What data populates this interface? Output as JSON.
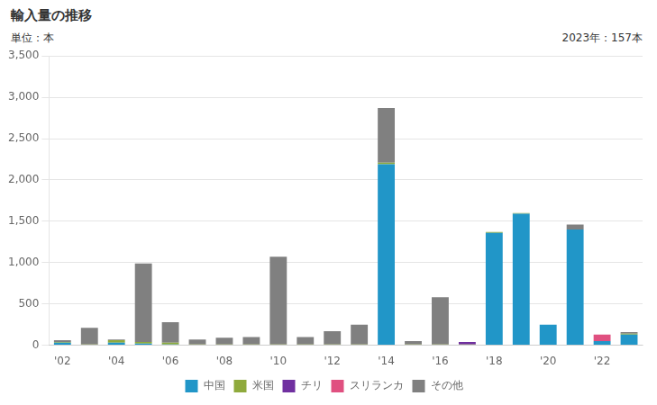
{
  "chart_data": {
    "type": "bar",
    "title": "輸入量の推移",
    "ylabel": "単位：本",
    "annotations": [
      "2023年：157本"
    ],
    "categories": [
      "'02",
      null,
      "'04",
      null,
      "'06",
      null,
      "'08",
      null,
      "'10",
      null,
      "'12",
      null,
      "'14",
      null,
      "'16",
      null,
      "'18",
      null,
      "'20",
      null,
      "'22",
      null
    ],
    "stacked": true,
    "series": [
      {
        "name": "中国",
        "color": "#2196c8",
        "values": [
          30,
          0,
          30,
          20,
          10,
          0,
          0,
          0,
          0,
          0,
          0,
          0,
          2190,
          0,
          0,
          0,
          1360,
          1590,
          250,
          1400,
          50,
          130
        ]
      },
      {
        "name": "米国",
        "color": "#8faa3c",
        "values": [
          10,
          10,
          30,
          20,
          20,
          10,
          10,
          10,
          10,
          10,
          10,
          10,
          20,
          10,
          10,
          10,
          10,
          10,
          0,
          0,
          0,
          10
        ]
      },
      {
        "name": "チリ",
        "color": "#7030a0",
        "values": [
          0,
          0,
          0,
          0,
          0,
          0,
          0,
          0,
          0,
          0,
          0,
          0,
          0,
          0,
          0,
          30,
          0,
          0,
          0,
          0,
          0,
          0
        ]
      },
      {
        "name": "スリランカ",
        "color": "#e05080",
        "values": [
          0,
          0,
          0,
          0,
          0,
          0,
          0,
          0,
          0,
          0,
          0,
          0,
          0,
          0,
          0,
          0,
          0,
          0,
          0,
          0,
          80,
          0
        ]
      },
      {
        "name": "その他",
        "color": "#808080",
        "values": [
          20,
          200,
          10,
          950,
          250,
          60,
          80,
          90,
          1060,
          90,
          160,
          240,
          660,
          40,
          570,
          0,
          0,
          0,
          0,
          60,
          0,
          20
        ]
      }
    ],
    "ylim": [
      0,
      3500
    ],
    "yticks": [
      0,
      500,
      {
        "value": 1000,
        "label": "1,000"
      },
      {
        "value": 1500,
        "label": "1,500"
      },
      {
        "value": 2000,
        "label": "2,000"
      },
      {
        "value": 2500,
        "label": "2,500"
      },
      {
        "value": 3000,
        "label": "3,000"
      },
      {
        "value": 3500,
        "label": "3,500"
      }
    ],
    "grid": true,
    "legend": "bottom"
  }
}
